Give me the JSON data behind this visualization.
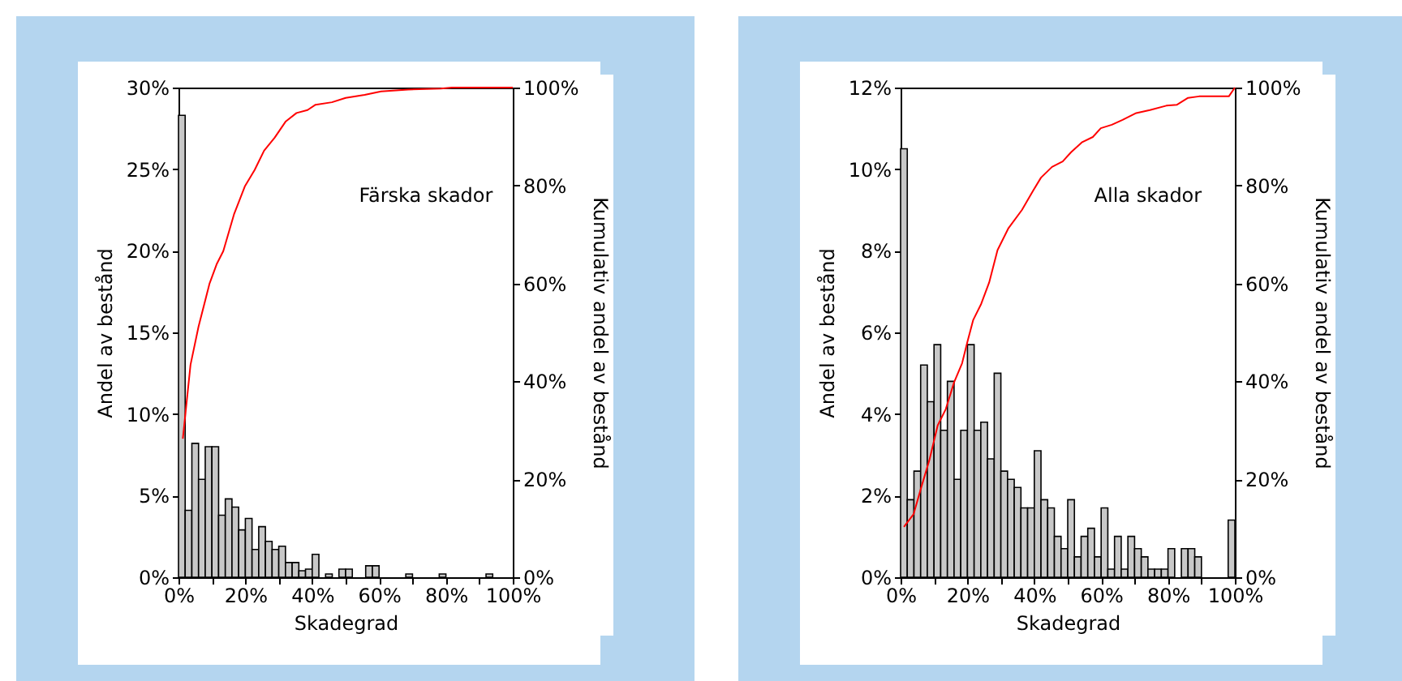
{
  "chart_data": [
    {
      "type": "histogram",
      "xlabel": "Skadegrad",
      "ylabel": "Andel av bestånd",
      "y2label": "Kumulativ andel av bestånd",
      "annotations": [
        "Färska skador"
      ],
      "bins": [
        0,
        2,
        4,
        6,
        8,
        10,
        12,
        14,
        16,
        18,
        20,
        22,
        24,
        26,
        28,
        30,
        32,
        34,
        36,
        38,
        40,
        42,
        44,
        46,
        48,
        50,
        52,
        54,
        56,
        58,
        60,
        62,
        64,
        66,
        68,
        70,
        72,
        74,
        76,
        78,
        80,
        82,
        84,
        86,
        88,
        90,
        92,
        94,
        96,
        98,
        100
      ],
      "values": [
        28.3,
        4.1,
        8.2,
        6.0,
        8.0,
        8.0,
        3.8,
        4.8,
        4.3,
        2.9,
        3.6,
        1.7,
        3.1,
        2.2,
        1.7,
        1.9,
        0.9,
        0.9,
        0.4,
        0.5,
        1.4,
        0,
        0.2,
        0,
        0.5,
        0.5,
        0,
        0,
        0.7,
        0.7,
        0,
        0,
        0,
        0,
        0.2,
        0,
        0,
        0,
        0,
        0.2,
        0,
        0,
        0,
        0,
        0,
        0,
        0.2,
        0,
        0,
        0
      ],
      "color": "#c8c8c8",
      "series": [
        {
          "type": "line",
          "axis": "y2",
          "color": "#ff0000",
          "x": [
            1.3,
            3.6,
            6,
            9.3,
            11.4,
            13.4,
            16.6,
            19.9,
            22.8,
            25.6,
            28.8,
            32.1,
            35.3,
            38.6,
            41,
            45.9,
            50,
            55.7,
            60.6,
            68.7,
            78.5,
            81.8,
            100
          ],
          "values": [
            28.3,
            43.4,
            51.2,
            60,
            63.9,
            66.6,
            74.1,
            79.9,
            83.2,
            87.1,
            89.8,
            93.1,
            94.8,
            95.4,
            96.5,
            97,
            97.9,
            98.5,
            99.2,
            99.6,
            99.8,
            100,
            100
          ]
        }
      ],
      "xlim": [
        0,
        100
      ],
      "xticks": [
        {
          "value": 0,
          "label": "0%"
        },
        {
          "value": 10,
          "label": null
        },
        {
          "value": 20,
          "label": "20%"
        },
        {
          "value": 30,
          "label": null
        },
        {
          "value": 40,
          "label": "40%"
        },
        {
          "value": 50,
          "label": null
        },
        {
          "value": 60,
          "label": "60%"
        },
        {
          "value": 70,
          "label": null
        },
        {
          "value": 80,
          "label": "80%"
        },
        {
          "value": 90,
          "label": null
        },
        {
          "value": 100,
          "label": "100%"
        }
      ],
      "ylim": [
        0,
        30
      ],
      "yticks": [
        {
          "value": 0,
          "label": "0%"
        },
        {
          "value": 5,
          "label": "5%"
        },
        {
          "value": 10,
          "label": "10%"
        },
        {
          "value": 15,
          "label": "15%"
        },
        {
          "value": 20,
          "label": "20%"
        },
        {
          "value": 25,
          "label": "25%"
        },
        {
          "value": 30,
          "label": "30%"
        }
      ],
      "y2lim": [
        0,
        100
      ],
      "y2ticks": [
        {
          "value": 0,
          "label": "0%"
        },
        {
          "value": 20,
          "label": "20%"
        },
        {
          "value": 40,
          "label": "40%"
        },
        {
          "value": 60,
          "label": "60%"
        },
        {
          "value": 80,
          "label": "80%"
        },
        {
          "value": 100,
          "label": "100%"
        }
      ],
      "grid": false,
      "legend": false
    },
    {
      "type": "histogram",
      "xlabel": "Skadegrad",
      "ylabel": "Andel av bestånd",
      "y2label": "Kumulativ andel av bestånd",
      "annotations": [
        "Alla skador"
      ],
      "bins": [
        0,
        2,
        4,
        6,
        8,
        10,
        12,
        14,
        16,
        18,
        20,
        22,
        24,
        26,
        28,
        30,
        32,
        34,
        36,
        38,
        40,
        42,
        44,
        46,
        48,
        50,
        52,
        54,
        56,
        58,
        60,
        62,
        64,
        66,
        68,
        70,
        72,
        74,
        76,
        78,
        80,
        82,
        84,
        86,
        88,
        90,
        92,
        94,
        96,
        98,
        100
      ],
      "values": [
        10.5,
        1.9,
        2.6,
        5.2,
        4.3,
        5.7,
        3.6,
        4.8,
        2.4,
        3.6,
        5.7,
        3.6,
        3.8,
        2.9,
        5.0,
        2.6,
        2.4,
        2.2,
        1.7,
        1.7,
        3.1,
        1.9,
        1.7,
        1.0,
        0.7,
        1.9,
        0.5,
        1.0,
        1.2,
        0.5,
        1.7,
        0.2,
        1.0,
        0.2,
        1.0,
        0.7,
        0.5,
        0.2,
        0.2,
        0.2,
        0.7,
        0,
        0.7,
        0.7,
        0.5,
        0,
        0,
        0,
        0,
        1.4
      ],
      "color": "#c8c8c8",
      "series": [
        {
          "type": "line",
          "axis": "y2",
          "color": "#ff0000",
          "x": [
            1,
            3.9,
            6.2,
            8.6,
            11.1,
            13.5,
            16,
            18.4,
            20,
            21.7,
            24.1,
            26.5,
            29,
            32.2,
            36.3,
            39.6,
            42,
            45.3,
            48.5,
            51,
            54.2,
            57.5,
            59.9,
            63.2,
            66.4,
            70.5,
            74.6,
            79.5,
            82.7,
            86,
            89.3,
            98.2,
            100
          ],
          "values": [
            10.3,
            12.9,
            18.4,
            23.9,
            31,
            34.3,
            39.8,
            43.7,
            48.1,
            52.5,
            55.8,
            60.2,
            66.8,
            71.2,
            75,
            78.9,
            81.6,
            83.8,
            84.9,
            86.8,
            88.8,
            89.9,
            91.7,
            92.4,
            93.4,
            94.8,
            95.4,
            96.3,
            96.5,
            97.9,
            98.2,
            98.2,
            100
          ]
        }
      ],
      "xlim": [
        0,
        100
      ],
      "xticks": [
        {
          "value": 0,
          "label": "0%"
        },
        {
          "value": 10,
          "label": null
        },
        {
          "value": 20,
          "label": "20%"
        },
        {
          "value": 30,
          "label": null
        },
        {
          "value": 40,
          "label": "40%"
        },
        {
          "value": 50,
          "label": null
        },
        {
          "value": 60,
          "label": "60%"
        },
        {
          "value": 70,
          "label": null
        },
        {
          "value": 80,
          "label": "80%"
        },
        {
          "value": 90,
          "label": null
        },
        {
          "value": 100,
          "label": "100%"
        }
      ],
      "ylim": [
        0,
        12
      ],
      "yticks": [
        {
          "value": 0,
          "label": "0%"
        },
        {
          "value": 2,
          "label": "2%"
        },
        {
          "value": 4,
          "label": "4%"
        },
        {
          "value": 6,
          "label": "6%"
        },
        {
          "value": 8,
          "label": "8%"
        },
        {
          "value": 10,
          "label": "10%"
        },
        {
          "value": 12,
          "label": "12%"
        }
      ],
      "y2lim": [
        0,
        100
      ],
      "y2ticks": [
        {
          "value": 0,
          "label": "0%"
        },
        {
          "value": 20,
          "label": "20%"
        },
        {
          "value": 40,
          "label": "40%"
        },
        {
          "value": 60,
          "label": "60%"
        },
        {
          "value": 80,
          "label": "80%"
        },
        {
          "value": 100,
          "label": "100%"
        }
      ],
      "grid": false,
      "legend": false
    }
  ]
}
